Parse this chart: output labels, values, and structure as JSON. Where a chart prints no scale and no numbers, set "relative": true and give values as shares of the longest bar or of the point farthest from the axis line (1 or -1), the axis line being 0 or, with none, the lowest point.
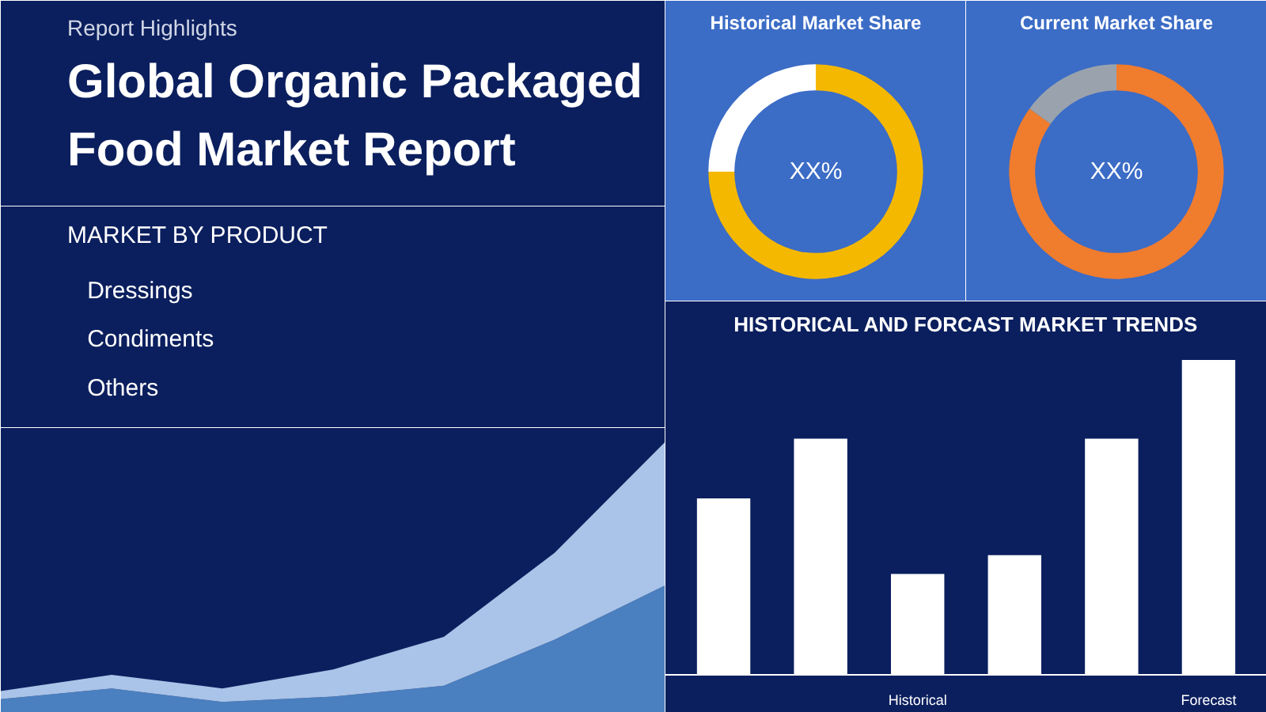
{
  "chart_data": [
    {
      "type": "other",
      "subtitle": "Report Highlights",
      "title": "Global Organic Packaged Food Market Report"
    },
    {
      "type": "other",
      "title": "MARKET BY PRODUCT",
      "annotations": [
        "Dressings",
        "Condiments",
        "Others"
      ]
    },
    {
      "type": "area",
      "relative": true,
      "stacked": true,
      "categories": [
        null,
        null,
        null,
        null,
        null,
        null,
        null
      ],
      "series": [
        {
          "color": "#4a7fc0",
          "values": [
            0.05,
            0.09,
            0.04,
            0.06,
            0.1,
            0.27,
            0.47
          ]
        },
        {
          "color": "#a9c4e8",
          "values": [
            0.03,
            0.05,
            0.05,
            0.1,
            0.18,
            0.32,
            0.53
          ]
        }
      ]
    },
    {
      "type": "donut",
      "title": "Historical Market Share",
      "categories": [
        null,
        null
      ],
      "values": [
        75,
        25
      ],
      "colors": [
        "#f5b800",
        "#ffffff"
      ],
      "annotations": [
        "XX%"
      ]
    },
    {
      "type": "donut",
      "title": "Current Market Share",
      "categories": [
        null,
        null
      ],
      "values": [
        85,
        15
      ],
      "colors": [
        "#f07c2e",
        "#9aa3ad"
      ],
      "annotations": [
        "XX%"
      ]
    },
    {
      "type": "bar",
      "relative": true,
      "title": "HISTORICAL AND FORCAST MARKET TRENDS",
      "categories": [
        null,
        null,
        "Historical",
        null,
        null,
        "Forecast"
      ],
      "values": [
        0.56,
        0.75,
        0.32,
        0.38,
        0.75,
        1.0
      ],
      "color": "#ffffff"
    }
  ]
}
